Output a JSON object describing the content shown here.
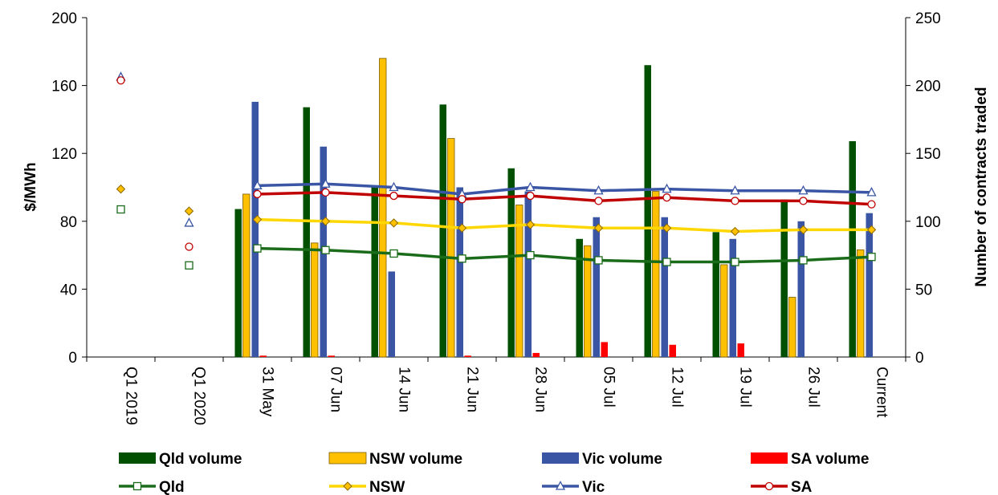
{
  "chart_data": {
    "type": "bar",
    "categories": [
      "Q1 2019",
      "Q1 2020",
      "31 May",
      "07 Jun",
      "14 Jun",
      "21 Jun",
      "28 Jun",
      "05 Jul",
      "12 Jul",
      "19 Jul",
      "26 Jul",
      "Current"
    ],
    "ylabel": "$/MWh",
    "y2label": "Number of contracts traded",
    "ylim": [
      0,
      200
    ],
    "yticks": [
      0,
      40,
      80,
      120,
      160,
      200
    ],
    "y2lim": [
      0,
      250
    ],
    "y2ticks": [
      0,
      50,
      100,
      150,
      200,
      250
    ],
    "grid": false,
    "legend_position": "bottom",
    "bar_series": [
      {
        "name": "Qld volume",
        "color": "#005000",
        "axis": "right",
        "values": [
          null,
          null,
          109,
          184,
          125,
          186,
          139,
          87,
          215,
          92,
          116,
          159
        ]
      },
      {
        "name": "NSW volume",
        "color": "#FFC000",
        "axis": "right",
        "values": [
          null,
          null,
          120,
          84,
          220,
          161,
          112,
          82,
          122,
          68,
          44,
          79
        ]
      },
      {
        "name": "Vic volume",
        "color": "#3A55A4",
        "axis": "right",
        "values": [
          null,
          null,
          188,
          155,
          63,
          125,
          122,
          103,
          103,
          87,
          100,
          106
        ]
      },
      {
        "name": "SA volume",
        "color": "#FF0000",
        "axis": "right",
        "values": [
          null,
          null,
          1,
          1,
          0,
          1,
          3,
          11,
          9,
          10,
          0,
          0
        ]
      }
    ],
    "line_series": [
      {
        "name": "Qld",
        "color": "#1A6B1A",
        "marker": "square",
        "axis": "left",
        "values": [
          87,
          54,
          64,
          63,
          61,
          58,
          60,
          57,
          56,
          56,
          57,
          59
        ]
      },
      {
        "name": "NSW",
        "color": "#FFD700",
        "marker": "diamond",
        "axis": "left",
        "values": [
          99,
          86,
          81,
          80,
          79,
          76,
          78,
          76,
          76,
          74,
          75,
          75
        ]
      },
      {
        "name": "Vic",
        "color": "#3A55A4",
        "marker": "triangle",
        "axis": "left",
        "values": [
          165,
          79,
          101,
          102,
          100,
          96,
          100,
          98,
          99,
          98,
          98,
          97
        ]
      },
      {
        "name": "SA",
        "color": "#C00000",
        "marker": "circle",
        "axis": "left",
        "values": [
          163,
          65,
          96,
          97,
          95,
          93,
          95,
          92,
          94,
          92,
          92,
          90
        ]
      }
    ]
  }
}
